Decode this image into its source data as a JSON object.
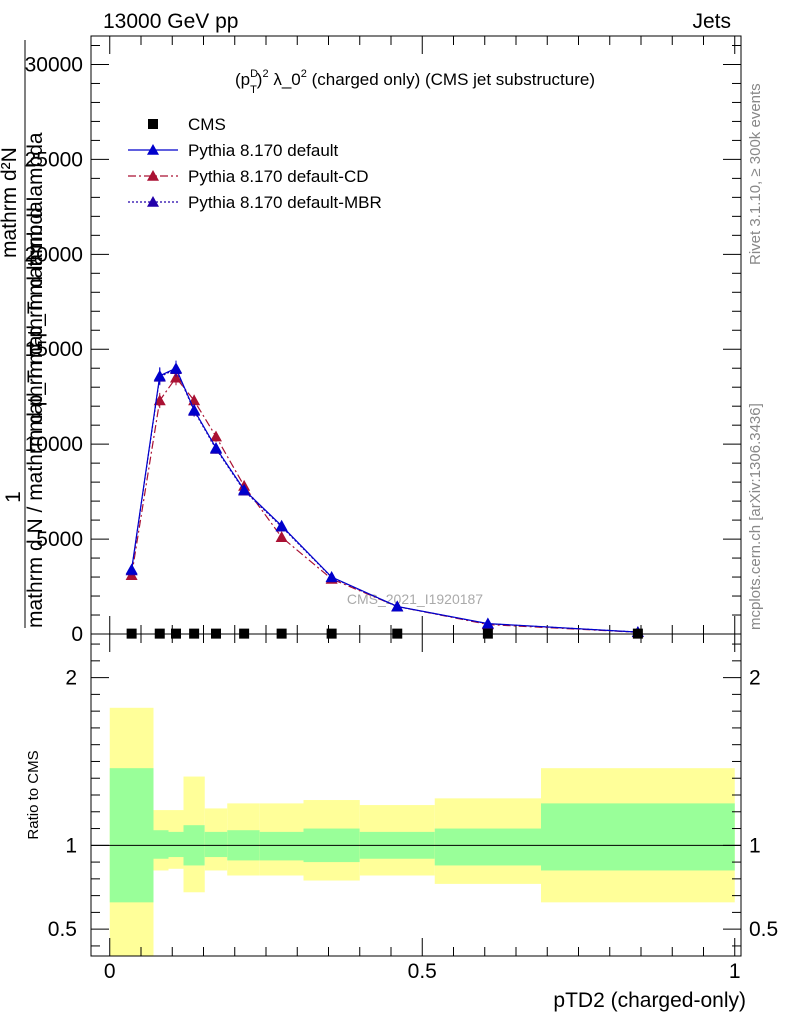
{
  "header": {
    "energy_label": "13000 GeV pp",
    "category_label": "Jets"
  },
  "side_labels": {
    "rivet": "Rivet 3.1.10, ≥ 300k events",
    "mcplots": "mcplots.cern.ch [arXiv:1306.3436]"
  },
  "chart_data": [
    {
      "type": "line",
      "panel": "main",
      "title": {
        "prefix": "(p",
        "sub": "T",
        "sup": "D",
        "sq1": "2",
        "mid": " λ_0",
        "sq2": "2",
        "suffix": " (charged only) (CMS jet substructure)"
      },
      "ylabel": {
        "one": "1",
        "denominator": "mathrm d N / mathrm d p_T mathrm d lambda",
        "numerator": "mathrm d²N",
        "num_sup": "2",
        "denominator_line2": "mathrm d p_T mathrm d lambda",
        "sub_t": "T"
      },
      "watermark": "CMS_2021_I1920187",
      "xlim": [
        -0.03,
        1.01
      ],
      "ylim": [
        0,
        31500
      ],
      "yticks": [
        {
          "v": 0,
          "label": "0"
        },
        {
          "v": 5000,
          "label": "5000"
        },
        {
          "v": 10000,
          "label": "10000"
        },
        {
          "v": 15000,
          "label": "15000"
        },
        {
          "v": 20000,
          "label": "20000"
        },
        {
          "v": 25000,
          "label": "25000"
        },
        {
          "v": 30000,
          "label": "30000"
        }
      ],
      "legend_position": "top-left",
      "legend": [
        {
          "name": "CMS",
          "color": "#000000",
          "marker": "square",
          "dash": "none"
        },
        {
          "name": "Pythia 8.170 default",
          "color": "#0000cc",
          "marker": "triangle",
          "dash": "solid"
        },
        {
          "name": "Pythia 8.170 default-CD",
          "color": "#aa1133",
          "marker": "triangle",
          "dash": "dashdot"
        },
        {
          "name": "Pythia 8.170 default-MBR",
          "color": "#2200aa",
          "marker": "triangle",
          "dash": "dotted"
        }
      ],
      "cms_points": {
        "x": [
          0.035,
          0.08,
          0.106,
          0.135,
          0.17,
          0.215,
          0.275,
          0.355,
          0.46,
          0.605,
          0.845
        ],
        "y": [
          20,
          20,
          20,
          20,
          20,
          20,
          20,
          20,
          20,
          20,
          20
        ]
      },
      "series": [
        {
          "name": "Pythia 8.170 default",
          "color": "#0000cc",
          "dash": "solid",
          "x": [
            0.035,
            0.08,
            0.106,
            0.135,
            0.17,
            0.215,
            0.275,
            0.355,
            0.46,
            0.605,
            0.845
          ],
          "y": [
            3400,
            13600,
            14000,
            11800,
            9800,
            7600,
            5700,
            3000,
            1450,
            550,
            100
          ],
          "err": [
            200,
            450,
            400,
            300,
            250,
            200,
            150,
            120,
            80,
            50,
            30
          ]
        },
        {
          "name": "Pythia 8.170 default-CD",
          "color": "#aa1133",
          "dash": "dashdot",
          "x": [
            0.035,
            0.08,
            0.106,
            0.135,
            0.17,
            0.215,
            0.275,
            0.355,
            0.46,
            0.605,
            0.845
          ],
          "y": [
            3100,
            12300,
            13500,
            12300,
            10400,
            7800,
            5100,
            2900,
            1450,
            500,
            90
          ],
          "err": [
            200,
            400,
            400,
            300,
            280,
            200,
            150,
            120,
            80,
            50,
            30
          ]
        },
        {
          "name": "Pythia 8.170 default-MBR",
          "color": "#2200aa",
          "dash": "dotted",
          "x": [
            0.035,
            0.08,
            0.106,
            0.135,
            0.17,
            0.215,
            0.275,
            0.355,
            0.46,
            0.605,
            0.845
          ],
          "y": [
            3350,
            13550,
            13950,
            11750,
            9750,
            7550,
            5650,
            2980,
            1440,
            540,
            100
          ],
          "err": [
            200,
            450,
            400,
            300,
            250,
            200,
            150,
            120,
            80,
            50,
            30
          ]
        }
      ]
    },
    {
      "type": "area",
      "panel": "ratio",
      "ylabel": "Ratio to CMS",
      "xlabel": "pTD2 (charged-only)",
      "xlim": [
        -0.03,
        1.01
      ],
      "ylim": [
        0.34,
        2.26
      ],
      "yticks_left": [
        {
          "v": 0.5,
          "label": "0.5"
        },
        {
          "v": 1,
          "label": "1"
        },
        {
          "v": 2,
          "label": "2"
        }
      ],
      "xticks": [
        {
          "v": 0,
          "label": "0"
        },
        {
          "v": 0.5,
          "label": "0.5"
        },
        {
          "v": 1,
          "label": "1"
        }
      ],
      "band_colors": {
        "outer": "#ffff99",
        "inner": "#99ff99"
      },
      "bins": [
        {
          "lo": 0.0,
          "hi": 0.07,
          "y_lo": 0.34,
          "y_hi": 1.82,
          "g_lo": 0.66,
          "g_hi": 1.46
        },
        {
          "lo": 0.07,
          "hi": 0.094,
          "y_lo": 0.85,
          "y_hi": 1.21,
          "g_lo": 0.92,
          "g_hi": 1.09
        },
        {
          "lo": 0.094,
          "hi": 0.118,
          "y_lo": 0.86,
          "y_hi": 1.21,
          "g_lo": 0.93,
          "g_hi": 1.08
        },
        {
          "lo": 0.118,
          "hi": 0.152,
          "y_lo": 0.72,
          "y_hi": 1.41,
          "g_lo": 0.88,
          "g_hi": 1.12
        },
        {
          "lo": 0.152,
          "hi": 0.188,
          "y_lo": 0.85,
          "y_hi": 1.22,
          "g_lo": 0.93,
          "g_hi": 1.08
        },
        {
          "lo": 0.188,
          "hi": 0.24,
          "y_lo": 0.82,
          "y_hi": 1.25,
          "g_lo": 0.91,
          "g_hi": 1.09
        },
        {
          "lo": 0.24,
          "hi": 0.31,
          "y_lo": 0.82,
          "y_hi": 1.25,
          "g_lo": 0.91,
          "g_hi": 1.08
        },
        {
          "lo": 0.31,
          "hi": 0.4,
          "y_lo": 0.79,
          "y_hi": 1.27,
          "g_lo": 0.9,
          "g_hi": 1.1
        },
        {
          "lo": 0.4,
          "hi": 0.52,
          "y_lo": 0.82,
          "y_hi": 1.24,
          "g_lo": 0.92,
          "g_hi": 1.08
        },
        {
          "lo": 0.52,
          "hi": 0.69,
          "y_lo": 0.77,
          "y_hi": 1.28,
          "g_lo": 0.88,
          "g_hi": 1.1
        },
        {
          "lo": 0.69,
          "hi": 1.0,
          "y_lo": 0.66,
          "y_hi": 1.46,
          "g_lo": 0.85,
          "g_hi": 1.25
        }
      ],
      "reference_line": 1
    }
  ]
}
